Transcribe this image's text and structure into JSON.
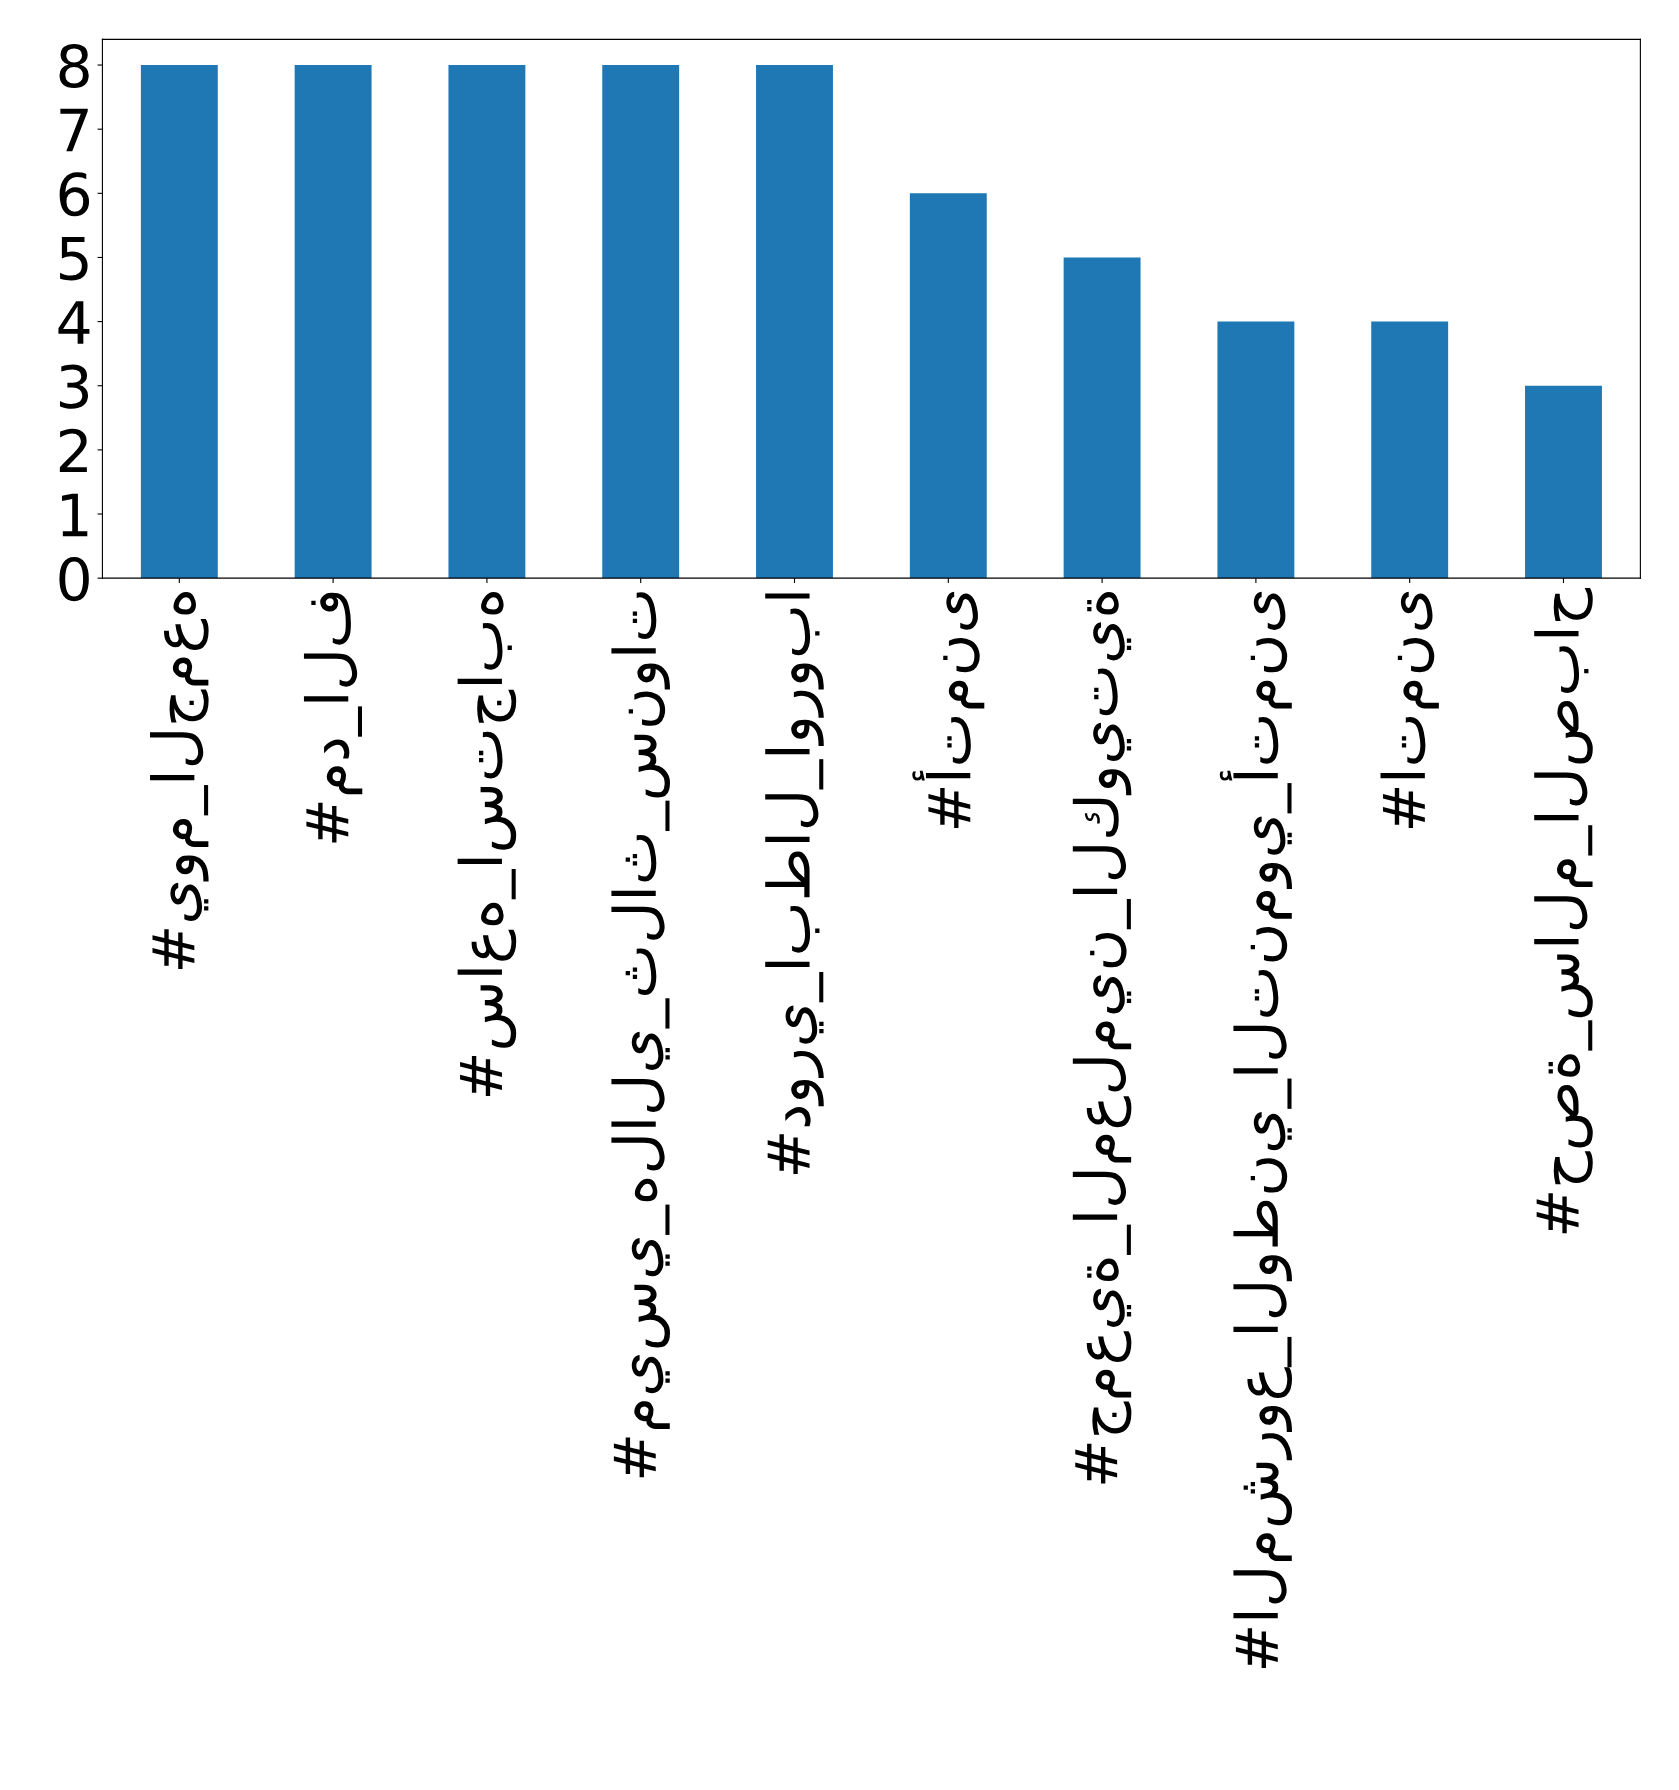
{
  "chart_data": {
    "type": "bar",
    "categories": [
      "#يوم_الجمعه",
      "#مد_الف",
      "#ساعه_استجابه",
      "#ميسي_هلالي_ثلاث_سنوات",
      "#دوري_ابطال_اوروبا",
      "#أتمنى",
      "#جمعية_المعلمين_الكويتية",
      "#المشروع_الوطني_التنموي_أتمنى",
      "#اتمنى",
      "#حصة_سالم_الصباح"
    ],
    "values": [
      8,
      8,
      8,
      8,
      8,
      6,
      5,
      4,
      4,
      3
    ],
    "color": "#1f77b4",
    "ylim": [
      0,
      8.4
    ],
    "yticks": [
      0,
      1,
      2,
      3,
      4,
      5,
      6,
      7,
      8
    ],
    "grid": false
  }
}
